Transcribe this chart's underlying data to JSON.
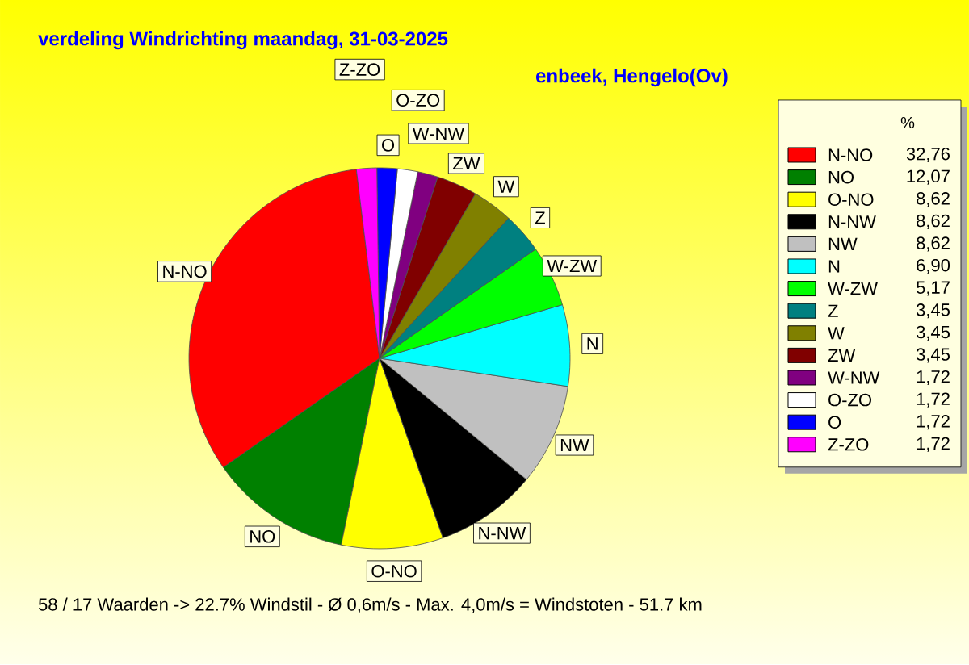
{
  "chart_data": {
    "type": "pie",
    "title": "verdeling Windrichting   maandag, 31-03-2025",
    "subtitle": "enbeek, Hengelo(Ov)",
    "categories": [
      "N-NO",
      "NO",
      "O-NO",
      "N-NW",
      "NW",
      "N",
      "W-ZW",
      "Z",
      "W",
      "ZW",
      "W-NW",
      "O-ZO",
      "O",
      "Z-ZO"
    ],
    "values": [
      32.76,
      12.07,
      8.62,
      8.62,
      8.62,
      6.9,
      5.17,
      3.45,
      3.45,
      3.45,
      1.72,
      1.72,
      1.72,
      1.72
    ],
    "value_labels": [
      "32,76",
      "12,07",
      "8,62",
      "8,62",
      "8,62",
      "6,90",
      "5,17",
      "3,45",
      "3,45",
      "3,45",
      "1,72",
      "1,72",
      "1,72",
      "1,72"
    ],
    "colors": [
      "#ff0000",
      "#008000",
      "#ffff00",
      "#000000",
      "#c0c0c0",
      "#00ffff",
      "#00ff00",
      "#008080",
      "#808000",
      "#800000",
      "#800080",
      "#ffffff",
      "#0000ff",
      "#ff00ff"
    ],
    "legend": "right",
    "legend_title": "%",
    "annotations": [
      "58 / 17 Waarden  -> 22.7% Windstil   -   Ø 0,6m/s  -  Max. 4,0m/s = Windstoten   -   51.7 km"
    ]
  }
}
